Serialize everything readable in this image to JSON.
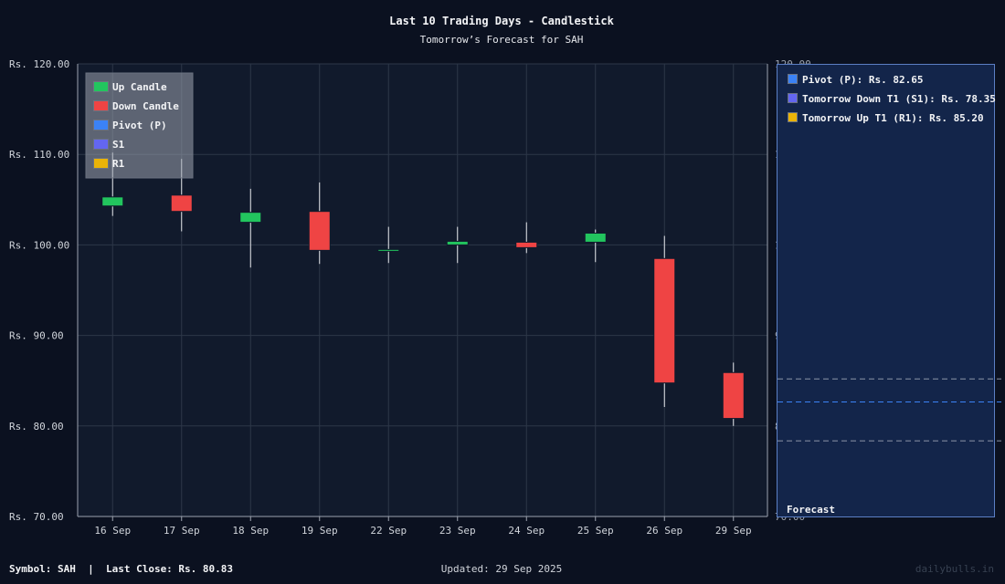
{
  "chart_data": {
    "type": "candlestick",
    "title": "Last 10 Trading Days - Candlestick",
    "subtitle": "Tomorrow’s Forecast for SAH",
    "categories": [
      "16 Sep",
      "17 Sep",
      "18 Sep",
      "19 Sep",
      "22 Sep",
      "23 Sep",
      "24 Sep",
      "25 Sep",
      "26 Sep",
      "29 Sep"
    ],
    "ohlc": [
      {
        "open": 104.3,
        "high": 110.2,
        "low": 103.2,
        "close": 105.3
      },
      {
        "open": 105.5,
        "high": 109.5,
        "low": 101.5,
        "close": 103.7
      },
      {
        "open": 102.5,
        "high": 106.2,
        "low": 97.5,
        "close": 103.6
      },
      {
        "open": 103.7,
        "high": 106.9,
        "low": 97.9,
        "close": 99.4
      },
      {
        "open": 99.35,
        "high": 102.0,
        "low": 98.0,
        "close": 99.5
      },
      {
        "open": 100.0,
        "high": 102.0,
        "low": 98.0,
        "close": 100.4
      },
      {
        "open": 100.3,
        "high": 102.5,
        "low": 99.1,
        "close": 99.7
      },
      {
        "open": 100.3,
        "high": 101.7,
        "low": 98.1,
        "close": 101.3
      },
      {
        "open": 98.5,
        "high": 101.0,
        "low": 82.1,
        "close": 84.75
      },
      {
        "open": 85.9,
        "high": 87.0,
        "low": 80.0,
        "close": 80.83
      }
    ],
    "ylim": [
      70,
      120
    ],
    "yticks": [
      70,
      80,
      90,
      100,
      110,
      120
    ],
    "ytick_prefix": "Rs. ",
    "grid": true,
    "legend": {
      "placement": "top-left",
      "items": [
        {
          "label": "Up Candle",
          "color": "#22c55e"
        },
        {
          "label": "Down Candle",
          "color": "#ef4444"
        },
        {
          "label": "Pivot (P)",
          "color": "#3b82f6"
        },
        {
          "label": "S1",
          "color": "#6366f1"
        },
        {
          "label": "R1",
          "color": "#eab308"
        }
      ]
    },
    "forecast": {
      "label": "Forecast",
      "levels": [
        {
          "key": "P",
          "label": "Pivot (P): Rs. 82.65",
          "value": 82.65,
          "color": "#3b82f6"
        },
        {
          "key": "S1",
          "label": "Tomorrow Down T1 (S1): Rs. 78.35",
          "value": 78.35,
          "color": "#6366f1"
        },
        {
          "key": "R1",
          "label": "Tomorrow Up T1 (R1): Rs. 85.20",
          "value": 85.2,
          "color": "#eab308"
        }
      ]
    },
    "colors": {
      "up": "#22c55e",
      "down": "#ef4444",
      "wick": "#e5e7eb",
      "background": "#111a2c",
      "grid": "#2d3748"
    }
  },
  "footer": {
    "symbol_info": "Symbol: SAH  |  Last Close: Rs. 80.83",
    "updated": "Updated: 29 Sep 2025",
    "watermark": "dailybulls.in"
  }
}
